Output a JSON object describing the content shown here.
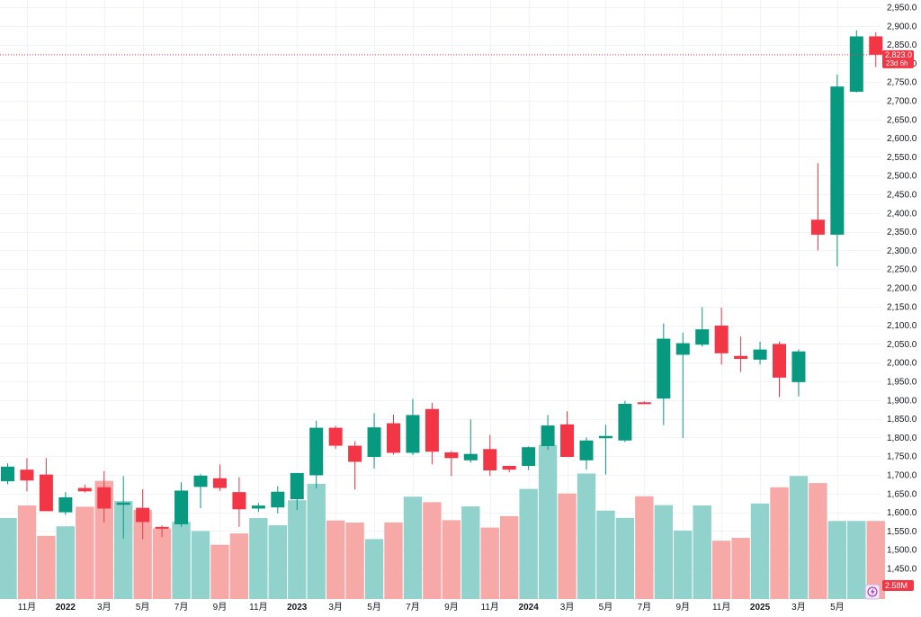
{
  "chart_data": {
    "type": "candlestick",
    "y_axis": {
      "min": 1400,
      "max": 2960,
      "step": 50,
      "tick_labels": [
        "2,950.0",
        "2,900.0",
        "2,850.0",
        "2,800.0",
        "2,750.0",
        "2,700.0",
        "2,650.0",
        "2,600.0",
        "2,550.0",
        "2,500.0",
        "2,450.0",
        "2,400.0",
        "2,350.0",
        "2,300.0",
        "2,250.0",
        "2,200.0",
        "2,150.0",
        "2,100.0",
        "2,050.0",
        "2,000.0",
        "1,950.0",
        "1,900.0",
        "1,850.0",
        "1,800.0",
        "1,750.0",
        "1,700.0",
        "1,650.0",
        "1,600.0",
        "1,550.0",
        "1,500.0",
        "1,450.0"
      ]
    },
    "x_axis": {
      "labels": [
        {
          "index": 1,
          "text": "11月",
          "bold": false
        },
        {
          "index": 3,
          "text": "2022",
          "bold": true
        },
        {
          "index": 5,
          "text": "3月",
          "bold": false
        },
        {
          "index": 7,
          "text": "5月",
          "bold": false
        },
        {
          "index": 9,
          "text": "7月",
          "bold": false
        },
        {
          "index": 11,
          "text": "9月",
          "bold": false
        },
        {
          "index": 13,
          "text": "11月",
          "bold": false
        },
        {
          "index": 15,
          "text": "2023",
          "bold": true
        },
        {
          "index": 17,
          "text": "3月",
          "bold": false
        },
        {
          "index": 19,
          "text": "5月",
          "bold": false
        },
        {
          "index": 21,
          "text": "7月",
          "bold": false
        },
        {
          "index": 23,
          "text": "9月",
          "bold": false
        },
        {
          "index": 25,
          "text": "11月",
          "bold": false
        },
        {
          "index": 27,
          "text": "2024",
          "bold": true
        },
        {
          "index": 29,
          "text": "3月",
          "bold": false
        },
        {
          "index": 31,
          "text": "5月",
          "bold": false
        },
        {
          "index": 33,
          "text": "7月",
          "bold": false
        },
        {
          "index": 35,
          "text": "9月",
          "bold": false
        },
        {
          "index": 37,
          "text": "11月",
          "bold": false
        },
        {
          "index": 39,
          "text": "2025",
          "bold": true
        },
        {
          "index": 41,
          "text": "3月",
          "bold": false
        },
        {
          "index": 43,
          "text": "5月",
          "bold": false
        }
      ]
    },
    "candles": [
      {
        "o": 1683,
        "h": 1731,
        "l": 1675,
        "c": 1722
      },
      {
        "o": 1714,
        "h": 1745,
        "l": 1656,
        "c": 1685
      },
      {
        "o": 1701,
        "h": 1745,
        "l": 1605,
        "c": 1603
      },
      {
        "o": 1600,
        "h": 1654,
        "l": 1593,
        "c": 1640
      },
      {
        "o": 1665,
        "h": 1674,
        "l": 1653,
        "c": 1656
      },
      {
        "o": 1667,
        "h": 1710,
        "l": 1573,
        "c": 1610
      },
      {
        "o": 1620,
        "h": 1697,
        "l": 1530,
        "c": 1626
      },
      {
        "o": 1612,
        "h": 1662,
        "l": 1528,
        "c": 1574
      },
      {
        "o": 1561,
        "h": 1565,
        "l": 1534,
        "c": 1558
      },
      {
        "o": 1568,
        "h": 1680,
        "l": 1561,
        "c": 1658
      },
      {
        "o": 1668,
        "h": 1702,
        "l": 1611,
        "c": 1698
      },
      {
        "o": 1691,
        "h": 1728,
        "l": 1657,
        "c": 1665
      },
      {
        "o": 1654,
        "h": 1694,
        "l": 1561,
        "c": 1608
      },
      {
        "o": 1610,
        "h": 1625,
        "l": 1601,
        "c": 1618
      },
      {
        "o": 1613,
        "h": 1670,
        "l": 1597,
        "c": 1655
      },
      {
        "o": 1635,
        "h": 1705,
        "l": 1606,
        "c": 1705
      },
      {
        "o": 1699,
        "h": 1845,
        "l": 1664,
        "c": 1826
      },
      {
        "o": 1826,
        "h": 1831,
        "l": 1770,
        "c": 1778
      },
      {
        "o": 1778,
        "h": 1790,
        "l": 1661,
        "c": 1735
      },
      {
        "o": 1748,
        "h": 1865,
        "l": 1717,
        "c": 1827
      },
      {
        "o": 1838,
        "h": 1861,
        "l": 1754,
        "c": 1759
      },
      {
        "o": 1759,
        "h": 1903,
        "l": 1753,
        "c": 1860
      },
      {
        "o": 1876,
        "h": 1893,
        "l": 1728,
        "c": 1762
      },
      {
        "o": 1760,
        "h": 1764,
        "l": 1697,
        "c": 1745
      },
      {
        "o": 1739,
        "h": 1848,
        "l": 1733,
        "c": 1756
      },
      {
        "o": 1769,
        "h": 1807,
        "l": 1697,
        "c": 1712
      },
      {
        "o": 1724,
        "h": 1724,
        "l": 1707,
        "c": 1714
      },
      {
        "o": 1724,
        "h": 1776,
        "l": 1713,
        "c": 1774
      },
      {
        "o": 1777,
        "h": 1860,
        "l": 1767,
        "c": 1832
      },
      {
        "o": 1835,
        "h": 1870,
        "l": 1755,
        "c": 1748
      },
      {
        "o": 1739,
        "h": 1800,
        "l": 1714,
        "c": 1792
      },
      {
        "o": 1798,
        "h": 1834,
        "l": 1701,
        "c": 1804
      },
      {
        "o": 1792,
        "h": 1898,
        "l": 1788,
        "c": 1890
      },
      {
        "o": 1894,
        "h": 1897,
        "l": 1890,
        "c": 1893
      },
      {
        "o": 1904,
        "h": 2105,
        "l": 1833,
        "c": 2064
      },
      {
        "o": 2021,
        "h": 2080,
        "l": 1799,
        "c": 2052
      },
      {
        "o": 2048,
        "h": 2148,
        "l": 2043,
        "c": 2089
      },
      {
        "o": 2099,
        "h": 2147,
        "l": 1995,
        "c": 2025
      },
      {
        "o": 2018,
        "h": 2070,
        "l": 1975,
        "c": 2010
      },
      {
        "o": 2008,
        "h": 2056,
        "l": 1995,
        "c": 2035
      },
      {
        "o": 2050,
        "h": 2056,
        "l": 1908,
        "c": 1960
      },
      {
        "o": 1948,
        "h": 2035,
        "l": 1910,
        "c": 2030
      },
      {
        "o": 2382,
        "h": 2533,
        "l": 2300,
        "c": 2342
      },
      {
        "o": 2342,
        "h": 2770,
        "l": 2257,
        "c": 2738
      },
      {
        "o": 2724,
        "h": 2888,
        "l": 2722,
        "c": 2872
      },
      {
        "o": 2872,
        "h": 2883,
        "l": 2790,
        "c": 2823
      }
    ],
    "volumes": [
      0.5,
      0.578,
      0.39,
      0.449,
      0.57,
      0.73,
      0.605,
      0.55,
      0.436,
      0.477,
      0.42,
      0.335,
      0.405,
      0.5,
      0.456,
      0.61,
      0.712,
      0.485,
      0.472,
      0.37,
      0.473,
      0.632,
      0.598,
      0.487,
      0.572,
      0.441,
      0.512,
      0.68,
      0.952,
      0.652,
      0.775,
      0.546,
      0.501,
      0.635,
      0.58,
      0.423,
      0.578,
      0.36,
      0.378,
      0.59,
      0.69,
      0.76,
      0.716,
      0.482,
      0.482,
      0.482
    ],
    "current_price": {
      "value": 2823.0,
      "label": "2,823.0",
      "countdown": "23d 6h"
    },
    "volume_label": "2.58M",
    "colors": {
      "up": "#089981",
      "down": "#f23645",
      "up_volume": "#92d2cc",
      "down_volume": "#f7a9a7",
      "grid": "#f0f3fa",
      "price_line": "#f23645",
      "text": "#131722"
    }
  }
}
